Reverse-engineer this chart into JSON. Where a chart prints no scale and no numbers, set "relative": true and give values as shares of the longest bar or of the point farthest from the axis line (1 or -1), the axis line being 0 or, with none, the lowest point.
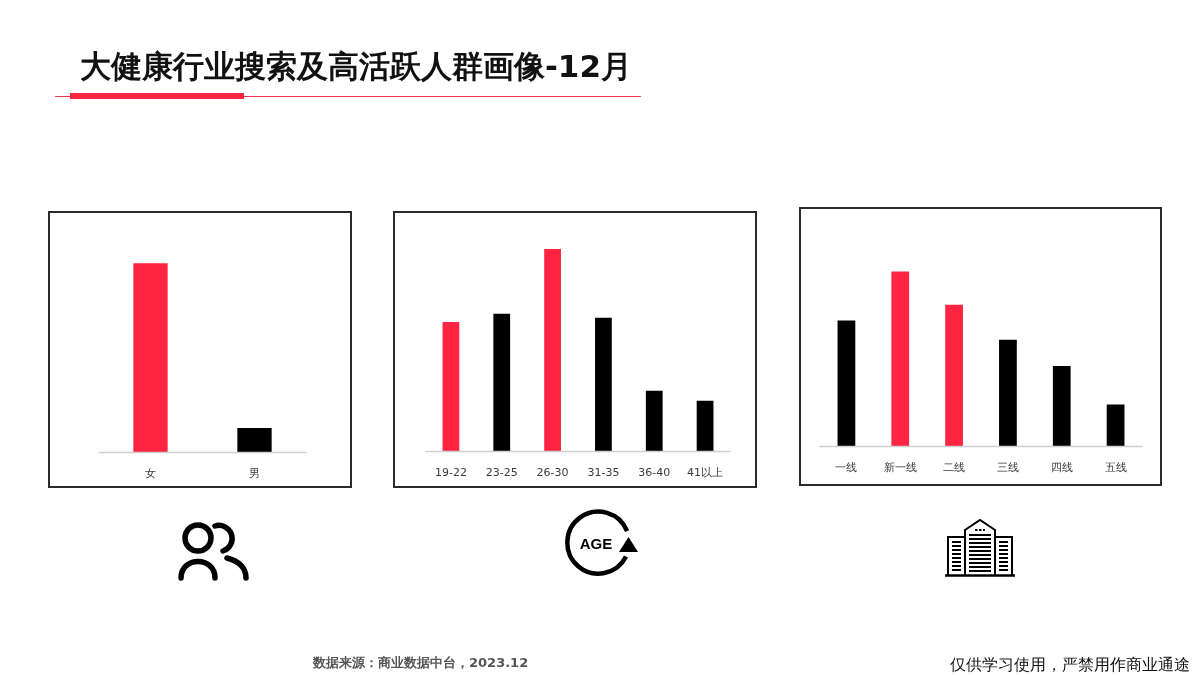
{
  "chart_data": [
    {
      "type": "bar",
      "title": "大健康行业搜索及高活跃人群画像-12月",
      "categories": [
        "女",
        "男"
      ],
      "values": [
        1,
        0.13
      ],
      "colors": [
        "#ff2442",
        "#000000"
      ],
      "relative": true,
      "annotations": [
        "数据来源：商业数据中台，2023.12",
        "仅供学习使用，严禁用作商业通途"
      ]
    },
    {
      "type": "bar",
      "categories": [
        "19-22",
        "23-25",
        "26-30",
        "31-35",
        "36-40",
        "41以上"
      ],
      "values": [
        0.64,
        0.68,
        1,
        0.66,
        0.3,
        0.25
      ],
      "colors": [
        "#ff2442",
        "#000000",
        "#ff2442",
        "#000000",
        "#000000",
        "#000000"
      ],
      "relative": true,
      "annotations": [
        "AGE"
      ]
    },
    {
      "type": "bar",
      "categories": [
        "一线",
        "新一线",
        "二线",
        "三线",
        "四线",
        "五线"
      ],
      "values": [
        0.72,
        1,
        0.81,
        0.61,
        0.46,
        0.24
      ],
      "colors": [
        "#000000",
        "#ff2442",
        "#ff2442",
        "#000000",
        "#000000",
        "#000000"
      ],
      "relative": true
    }
  ]
}
